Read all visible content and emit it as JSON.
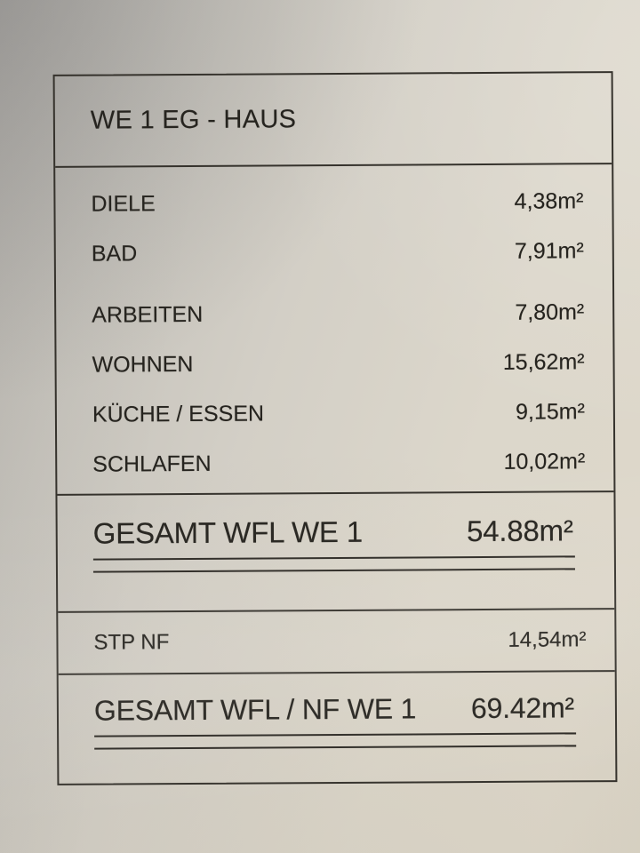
{
  "document": {
    "title": "WE 1 EG - HAUS",
    "rooms": [
      {
        "label": "DIELE",
        "area": "4,38m²"
      },
      {
        "label": "BAD",
        "area": "7,91m²"
      },
      {
        "label": "ARBEITEN",
        "area": "7,80m²"
      },
      {
        "label": "WOHNEN",
        "area": "15,62m²"
      },
      {
        "label": "KÜCHE / ESSEN",
        "area": "9,15m²"
      },
      {
        "label": "SCHLAFEN",
        "area": "10,02m²"
      }
    ],
    "total_wfl": {
      "label": "GESAMT WFL WE 1",
      "area": "54.88m²"
    },
    "stp": {
      "label": "STP NF",
      "area": "14,54m²"
    },
    "total_wfl_nf": {
      "label": "GESAMT WFL / NF WE 1",
      "area": "69.42m²"
    }
  },
  "colors": {
    "paper_light": "#ddd7ca",
    "paper_shadow": "#b6b3ae",
    "ink": "#26241f",
    "rule": "#35322c"
  }
}
